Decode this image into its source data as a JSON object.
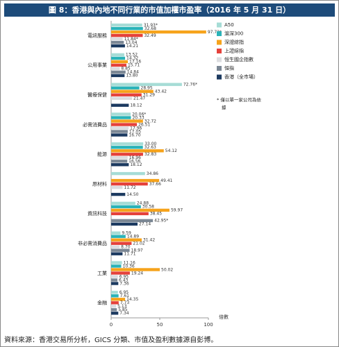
{
  "chart_data": {
    "type": "bar",
    "orientation": "horizontal",
    "title": "圖 8：香港與內地不同行業的市值加權市盈率（2016 年 5 月 31 日）",
    "categories": [
      "電訊服務",
      "公用事業",
      "醫療保健",
      "必需消費品",
      "能源",
      "原材料",
      "資訊科技",
      "非必需消費品",
      "工業",
      "金融"
    ],
    "series": [
      {
        "name": "A50",
        "color": "#a6dcd6",
        "values": [
          31.93,
          13.52,
          72.76,
          20.06,
          33.0,
          34.86,
          24.88,
          9.59,
          11.16,
          6.95
        ],
        "value_labels": [
          "31.93*",
          "13.52",
          "72.76*",
          "20.06*",
          "33.00",
          "34.86",
          "24.88",
          "9.59",
          "11.16",
          "6.95"
        ]
      },
      {
        "name": "滬深300",
        "color": "#2ab3b8",
        "values": [
          32.68,
          14.32,
          28.95,
          20.33,
          32.63,
          null,
          30.58,
          14.89,
          10.36,
          7.61
        ],
        "value_labels": [
          "32.68",
          "14.32",
          "28.95",
          "20.33",
          "32.63",
          null,
          "30.58",
          "14.89",
          "10.36",
          "7.61"
        ]
      },
      {
        "name": "深證綜指",
        "color": "#f6a31b",
        "values": [
          97.73,
          17.16,
          43.42,
          32.72,
          54.12,
          49.41,
          59.97,
          31.42,
          50.02,
          14.35
        ],
        "value_labels": [
          "97.73*",
          "17.16",
          "43.42",
          "32.72",
          "54.12",
          "49.41",
          "59.97",
          "31.42",
          "50.02",
          "14.35"
        ]
      },
      {
        "name": "上證綜指",
        "color": "#e5413b",
        "values": [
          32.49,
          15.71,
          31.29,
          26.51,
          32.83,
          37.66,
          38.45,
          21.02,
          19.24,
          7.73
        ],
        "value_labels": [
          "32.49",
          "15.71",
          "31.29",
          "26.51",
          "32.83",
          "37.66",
          "38.45",
          "21.02",
          "19.24",
          "7.73"
        ]
      },
      {
        "name": "恒生國企指數",
        "color": "#dcdde0",
        "values": [
          11.84,
          8.85,
          21.47,
          17.96,
          16.96,
          11.72,
          null,
          8.7,
          6.95,
          5.13
        ],
        "value_labels": [
          "11.84*",
          "8.85",
          "21.47",
          "17.96",
          "16.96",
          "11.72",
          null,
          "8.70",
          "6.95",
          "5.13"
        ]
      },
      {
        "name": "恒指",
        "color": "#7b8794",
        "values": [
          13.04,
          14.84,
          null,
          17.05,
          16.56,
          null,
          42.95,
          18.97,
          6.43,
          5.85
        ],
        "value_labels": [
          "13.04",
          "14.84",
          null,
          "17.05",
          "16.56",
          null,
          "42.95*",
          "18.97",
          "6.43",
          "5.85"
        ]
      },
      {
        "name": "香港（全市場）",
        "color": "#1c3a60",
        "values": [
          14.21,
          13.8,
          18.12,
          16.7,
          18.12,
          14.5,
          27.14,
          11.71,
          7.36,
          7.34
        ],
        "value_labels": [
          "14.21",
          "13.80",
          "18.12",
          "16.70",
          "18.12",
          "14.50",
          "27.14",
          "11.71",
          "7.36",
          "7.34"
        ]
      }
    ],
    "xlim": [
      0,
      100
    ],
    "xticks": [
      0,
      50,
      100
    ],
    "x_label": "倍數",
    "annotation": "* 僅以單一家公司為依據",
    "source": "資料來源：香港交易所分析，GICS 分類、市值及盈利數據源自彭博。"
  }
}
